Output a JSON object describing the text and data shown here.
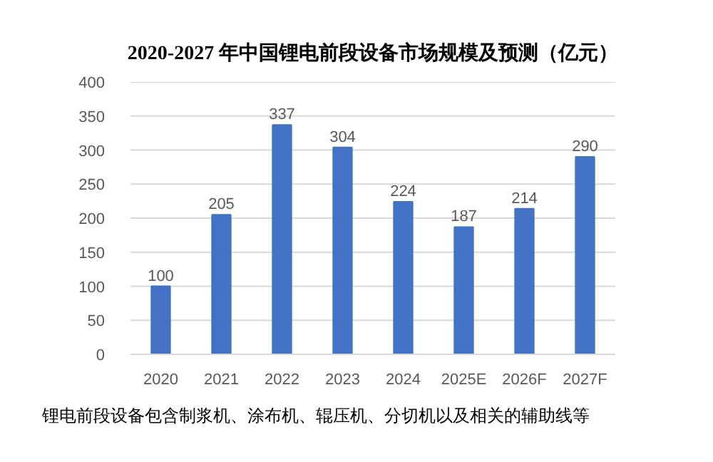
{
  "chart_data": {
    "type": "bar",
    "title": "2020-2027 年中国锂电前段设备市场规模及预测（亿元）",
    "categories": [
      "2020",
      "2021",
      "2022",
      "2023",
      "2024",
      "2025E",
      "2026F",
      "2027F"
    ],
    "values": [
      100,
      205,
      337,
      304,
      224,
      187,
      214,
      290
    ],
    "color": "#4472c4",
    "ylim": [
      0,
      400
    ],
    "yticks": [
      0,
      50,
      100,
      150,
      200,
      250,
      300,
      350,
      400
    ],
    "grid": "y",
    "data_labels": true,
    "annotations": [
      "锂电前段设备包含制浆机、涂布机、辊压机、分切机以及相关的辅助线等"
    ]
  }
}
